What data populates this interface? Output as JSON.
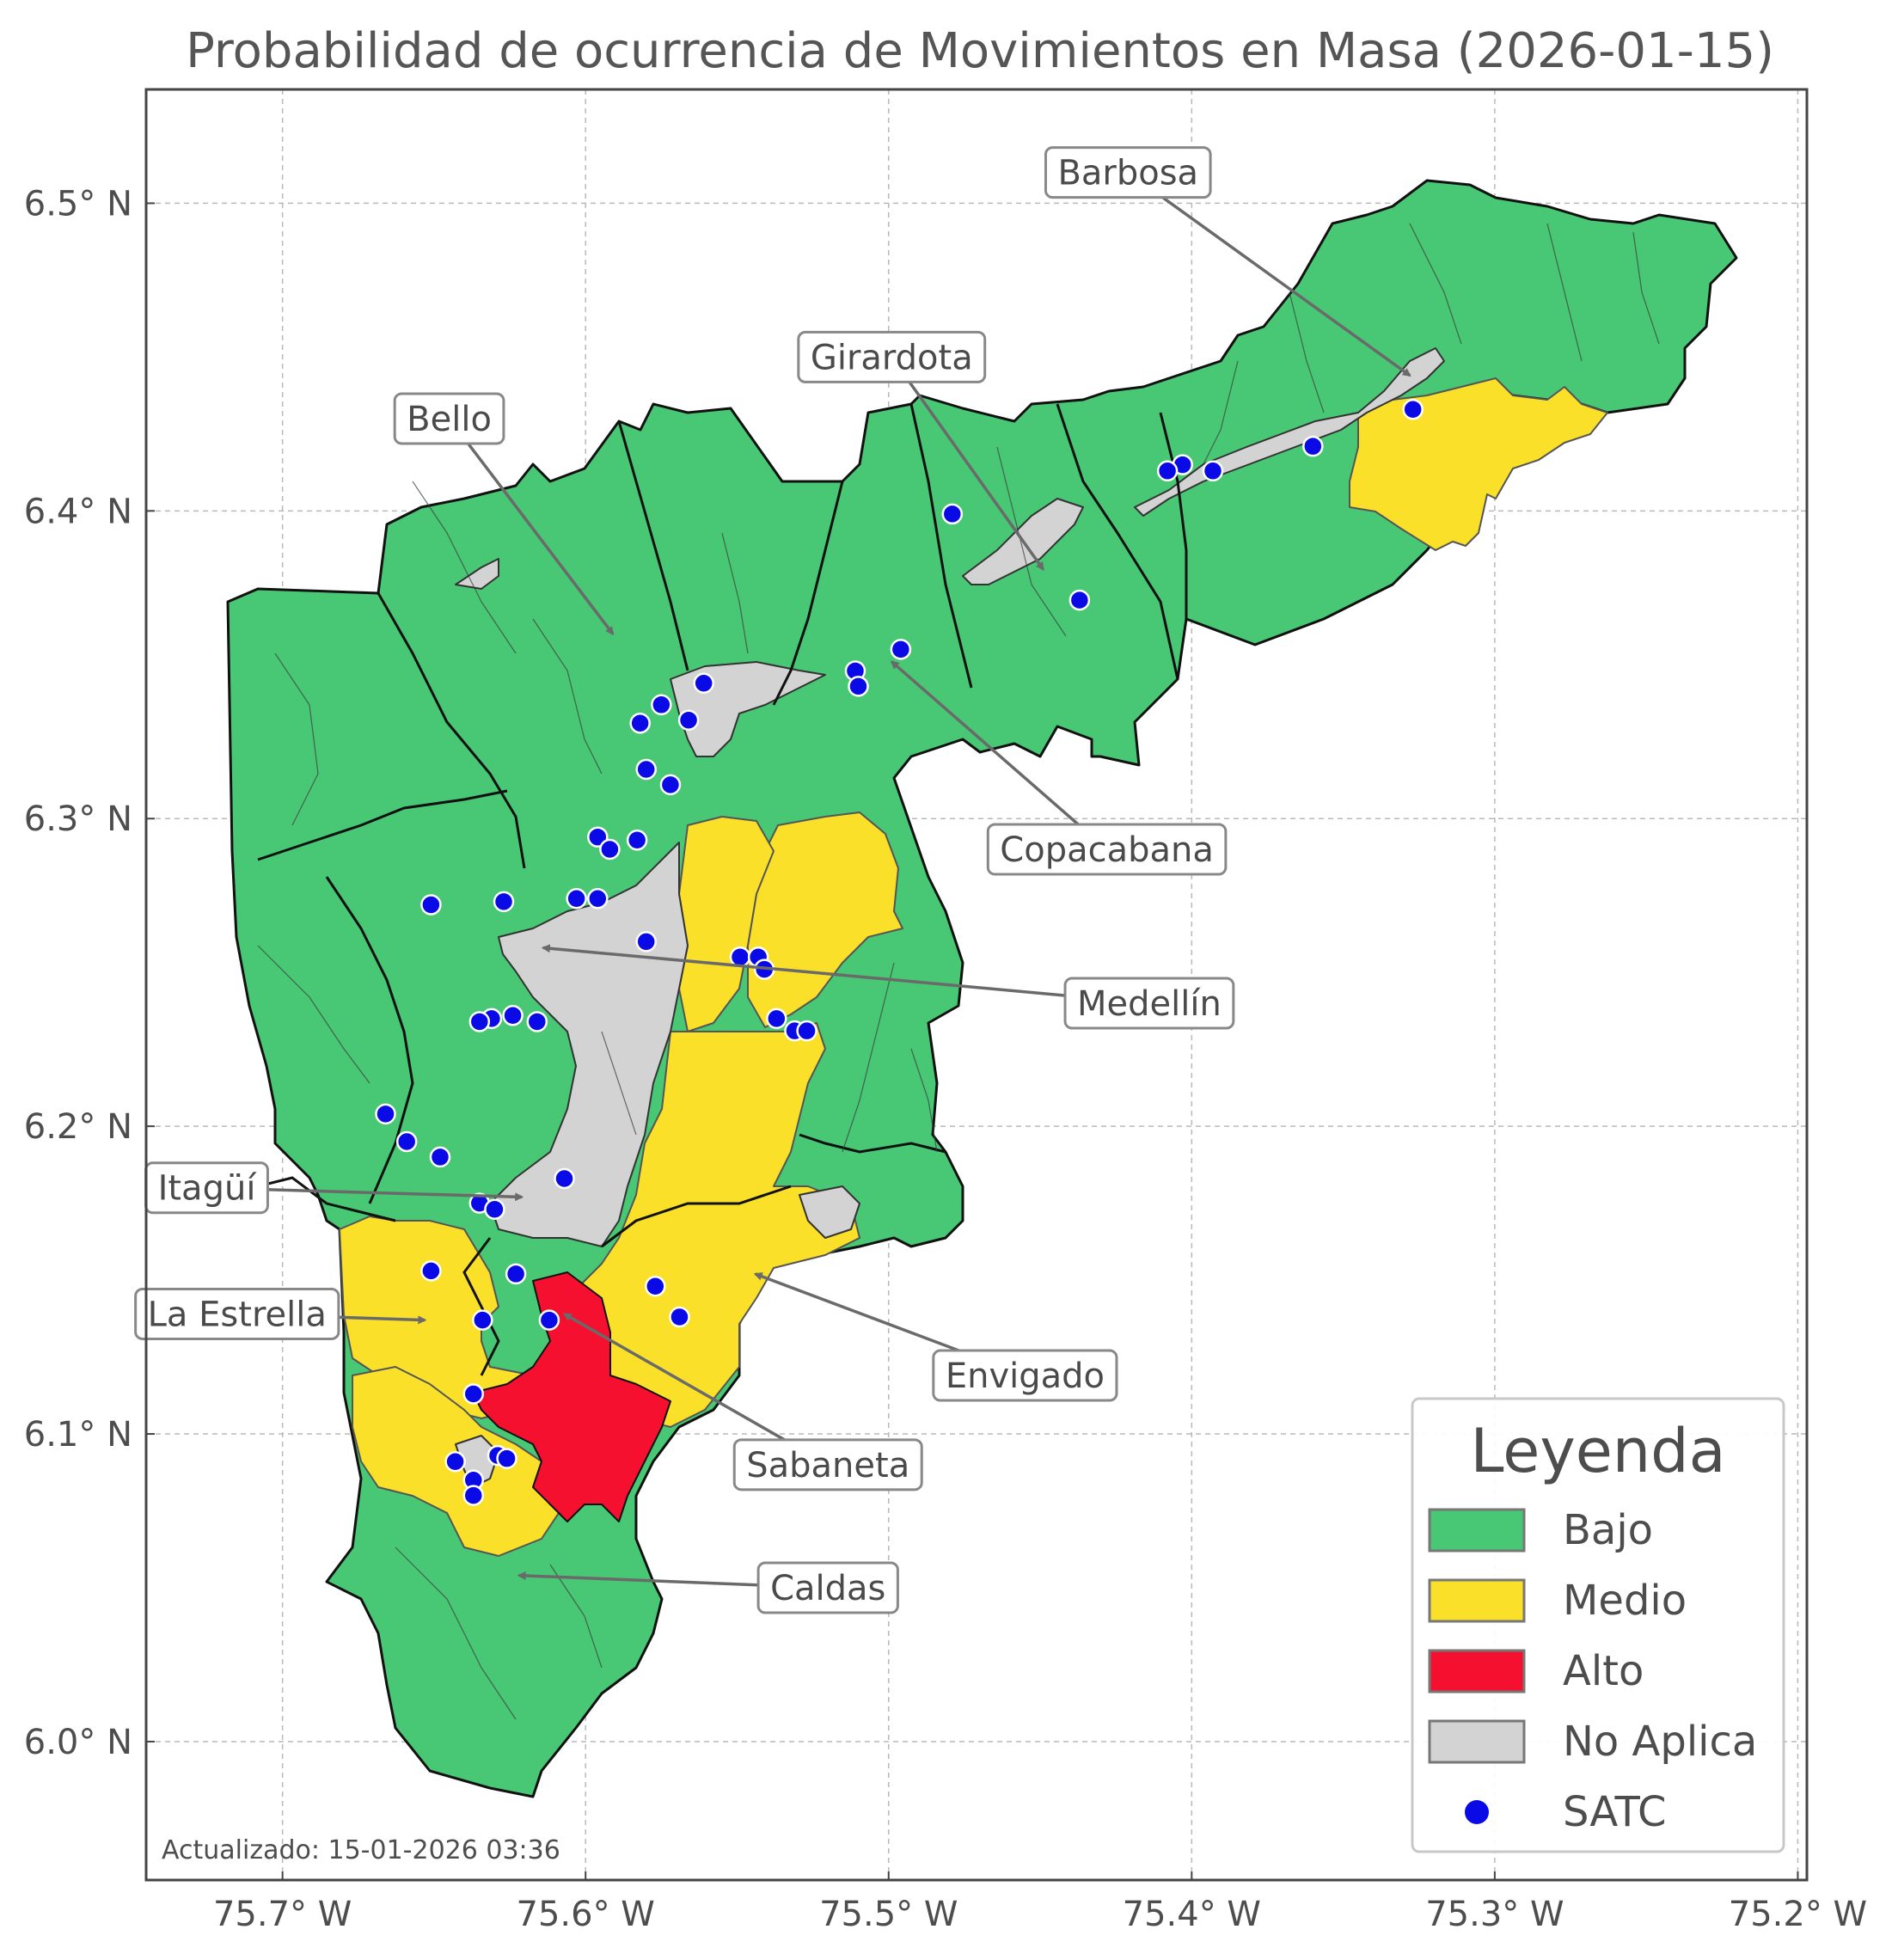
{
  "title": "Probabilidad de ocurrencia de Movimientos en Masa (2026-01-15)",
  "updated": "Actualizado: 15-01-2026 03:36",
  "axes": {
    "x_ticks": [
      {
        "value": -75.7,
        "label": "75.7° W"
      },
      {
        "value": -75.6,
        "label": "75.6° W"
      },
      {
        "value": -75.5,
        "label": "75.5° W"
      },
      {
        "value": -75.4,
        "label": "75.4° W"
      },
      {
        "value": -75.3,
        "label": "75.3° W"
      },
      {
        "value": -75.2,
        "label": "75.2° W"
      }
    ],
    "y_ticks": [
      {
        "value": 6.5,
        "label": "6.5° N"
      },
      {
        "value": 6.4,
        "label": "6.4° N"
      },
      {
        "value": 6.3,
        "label": "6.3° N"
      },
      {
        "value": 6.2,
        "label": "6.2° N"
      },
      {
        "value": 6.1,
        "label": "6.1° N"
      },
      {
        "value": 6.0,
        "label": "6.0° N"
      }
    ],
    "x_range": [
      -75.745,
      -75.197
    ],
    "y_range": [
      5.955,
      6.537
    ],
    "grid": true
  },
  "legend": {
    "title": "Leyenda",
    "placement": "bottom-right",
    "items": [
      {
        "label": "Bajo",
        "color": "#48c774",
        "kind": "patch"
      },
      {
        "label": "Medio",
        "color": "#fbe029",
        "kind": "patch"
      },
      {
        "label": "Alto",
        "color": "#f5102f",
        "kind": "patch"
      },
      {
        "label": "No Aplica",
        "color": "#d3d3d3",
        "kind": "patch"
      },
      {
        "label": "SATC",
        "color": "#0a0ae6",
        "kind": "marker"
      }
    ]
  },
  "municipalities": [
    {
      "name": "Barbosa",
      "label_lon": -75.421,
      "label_lat": 6.51,
      "arrow_lon": -75.328,
      "arrow_lat": 6.444
    },
    {
      "name": "Girardota",
      "label_lon": -75.499,
      "label_lat": 6.45,
      "arrow_lon": -75.449,
      "arrow_lat": 6.381
    },
    {
      "name": "Bello",
      "label_lon": -75.645,
      "label_lat": 6.43,
      "arrow_lon": -75.591,
      "arrow_lat": 6.36
    },
    {
      "name": "Copacabana",
      "label_lon": -75.428,
      "label_lat": 6.29,
      "arrow_lon": -75.499,
      "arrow_lat": 6.351
    },
    {
      "name": "Medellín",
      "label_lon": -75.414,
      "label_lat": 6.24,
      "arrow_lon": -75.614,
      "arrow_lat": 6.258
    },
    {
      "name": "Itagüí",
      "label_lon": -75.725,
      "label_lat": 6.18,
      "arrow_lon": -75.621,
      "arrow_lat": 6.177
    },
    {
      "name": "La Estrella",
      "label_lon": -75.715,
      "label_lat": 6.139,
      "arrow_lon": -75.653,
      "arrow_lat": 6.137
    },
    {
      "name": "Envigado",
      "label_lon": -75.455,
      "label_lat": 6.119,
      "arrow_lon": -75.544,
      "arrow_lat": 6.152
    },
    {
      "name": "Sabaneta",
      "label_lon": -75.52,
      "label_lat": 6.09,
      "arrow_lon": -75.607,
      "arrow_lat": 6.139
    },
    {
      "name": "Caldas",
      "label_lon": -75.52,
      "label_lat": 6.05,
      "arrow_lon": -75.622,
      "arrow_lat": 6.054
    }
  ],
  "satc_stations": [
    [
      -75.327,
      6.433
    ],
    [
      -75.36,
      6.421
    ],
    [
      -75.393,
      6.413
    ],
    [
      -75.403,
      6.415
    ],
    [
      -75.408,
      6.413
    ],
    [
      -75.479,
      6.399
    ],
    [
      -75.437,
      6.371
    ],
    [
      -75.496,
      6.355
    ],
    [
      -75.511,
      6.348
    ],
    [
      -75.51,
      6.343
    ],
    [
      -75.561,
      6.344
    ],
    [
      -75.566,
      6.332
    ],
    [
      -75.575,
      6.337
    ],
    [
      -75.582,
      6.331
    ],
    [
      -75.58,
      6.316
    ],
    [
      -75.572,
      6.311
    ],
    [
      -75.583,
      6.293
    ],
    [
      -75.596,
      6.294
    ],
    [
      -75.592,
      6.29
    ],
    [
      -75.596,
      6.274
    ],
    [
      -75.603,
      6.274
    ],
    [
      -75.627,
      6.273
    ],
    [
      -75.651,
      6.272
    ],
    [
      -75.58,
      6.26
    ],
    [
      -75.549,
      6.255
    ],
    [
      -75.543,
      6.255
    ],
    [
      -75.541,
      6.251
    ],
    [
      -75.537,
      6.235
    ],
    [
      -75.531,
      6.231
    ],
    [
      -75.527,
      6.231
    ],
    [
      -75.624,
      6.236
    ],
    [
      -75.631,
      6.235
    ],
    [
      -75.635,
      6.234
    ],
    [
      -75.616,
      6.234
    ],
    [
      -75.607,
      6.183
    ],
    [
      -75.666,
      6.204
    ],
    [
      -75.659,
      6.195
    ],
    [
      -75.648,
      6.19
    ],
    [
      -75.635,
      6.175
    ],
    [
      -75.63,
      6.173
    ],
    [
      -75.651,
      6.153
    ],
    [
      -75.623,
      6.152
    ],
    [
      -75.634,
      6.137
    ],
    [
      -75.612,
      6.137
    ],
    [
      -75.577,
      6.148
    ],
    [
      -75.569,
      6.138
    ],
    [
      -75.637,
      6.113
    ],
    [
      -75.643,
      6.091
    ],
    [
      -75.629,
      6.093
    ],
    [
      -75.626,
      6.092
    ],
    [
      -75.637,
      6.085
    ],
    [
      -75.637,
      6.08
    ]
  ]
}
